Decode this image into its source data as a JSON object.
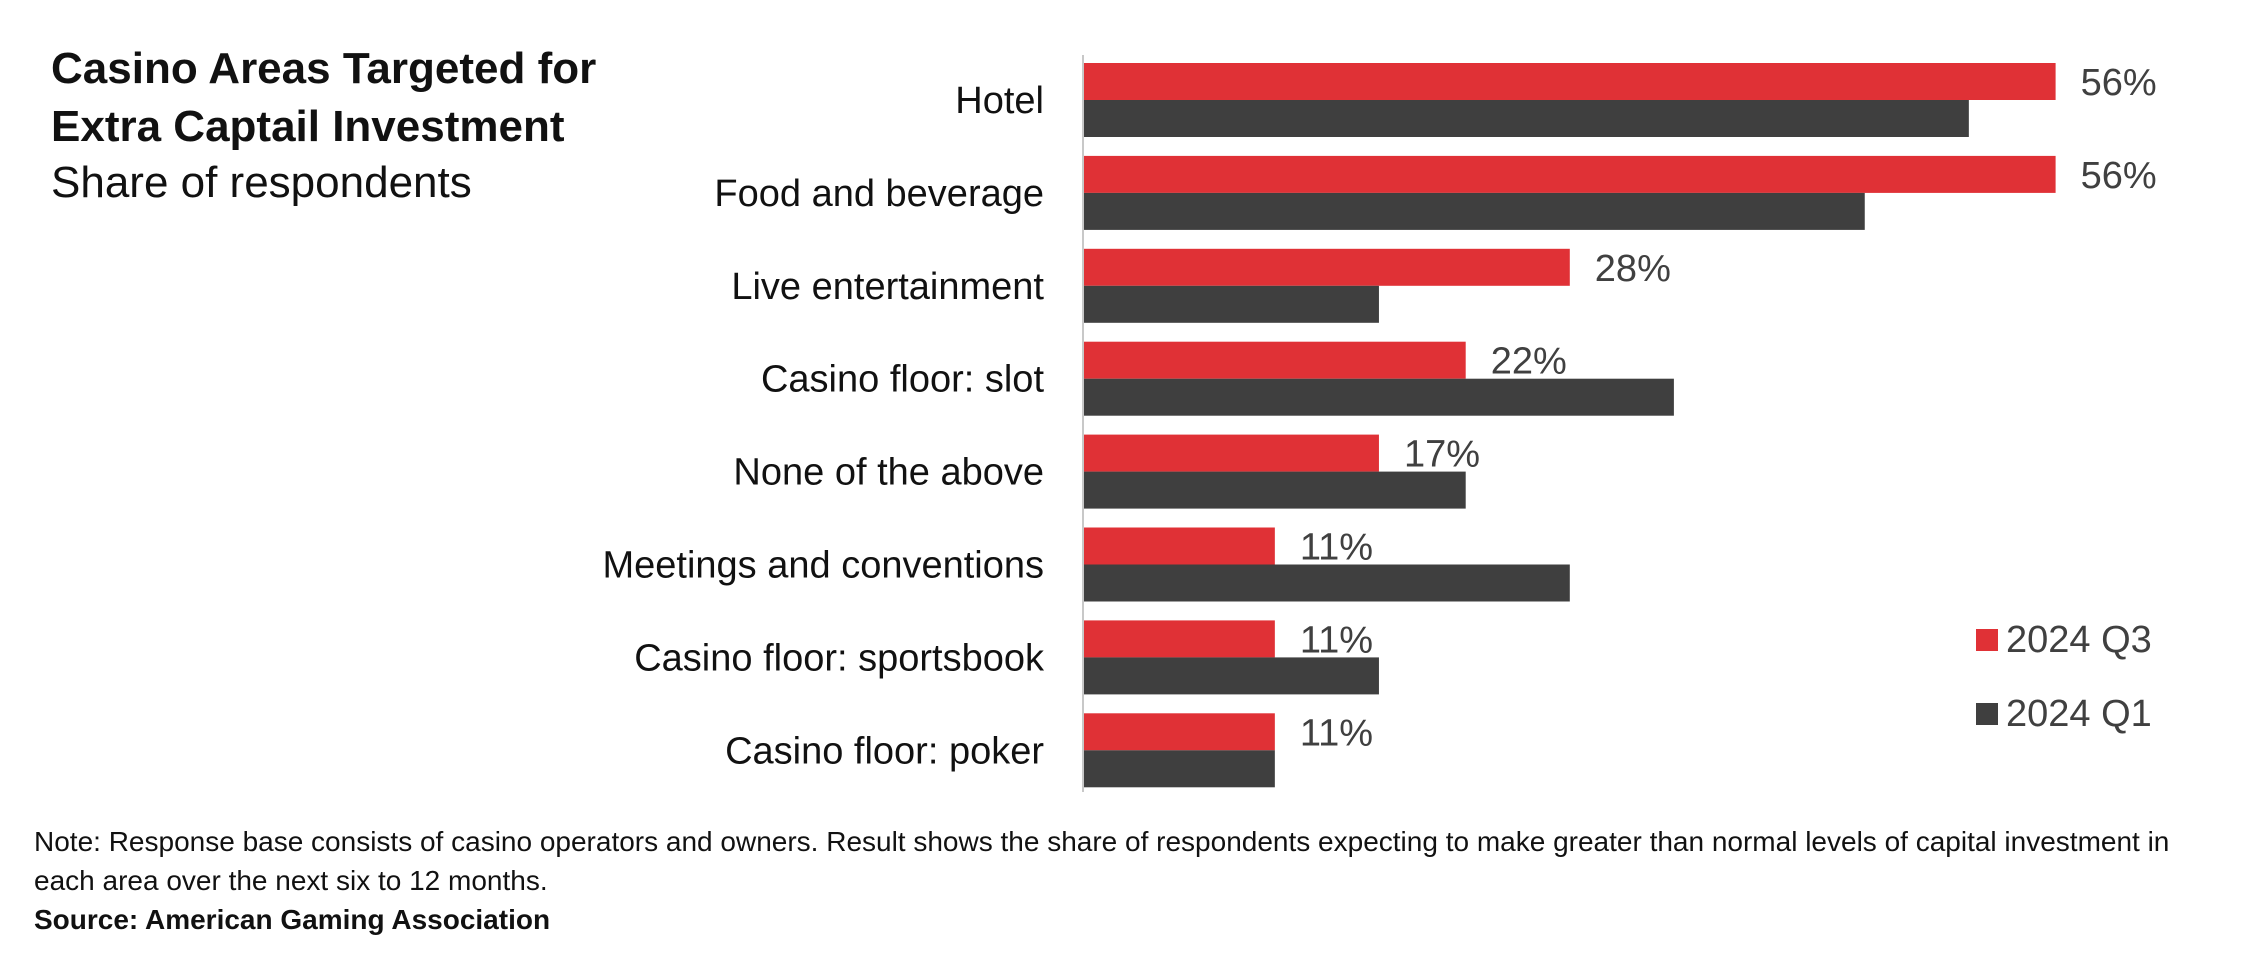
{
  "title": "Casino Areas Targeted for Extra Captail Investment",
  "subtitle": "Share of respondents",
  "note": "Note: Response base consists of casino operators and owners. Result shows the share of respondents expecting to make greater than normal levels of capital investment in each area over the next six to 12 months.",
  "source": "Source: American Gaming Association",
  "colors": {
    "q3": "#e03136",
    "q1": "#3f3f3f",
    "axis": "#c8c8c8"
  },
  "chart_data": {
    "type": "bar",
    "orientation": "horizontal",
    "categories": [
      "Hotel",
      "Food and beverage",
      "Live entertainment",
      "Casino floor: slot",
      "None of the above",
      "Meetings and conventions",
      "Casino floor: sportsbook",
      "Casino floor: poker"
    ],
    "series": [
      {
        "name": "2024 Q3",
        "values": [
          56,
          56,
          28,
          22,
          17,
          11,
          11,
          11
        ],
        "labels": [
          "56%",
          "56%",
          "28%",
          "22%",
          "17%",
          "11%",
          "11%",
          "11%"
        ]
      },
      {
        "name": "2024 Q1",
        "values": [
          51,
          45,
          17,
          34,
          22,
          28,
          17,
          11
        ]
      }
    ],
    "value_unit": "%",
    "xlim": [
      0,
      65
    ],
    "grid": false,
    "legend_position": "bottom-right"
  }
}
